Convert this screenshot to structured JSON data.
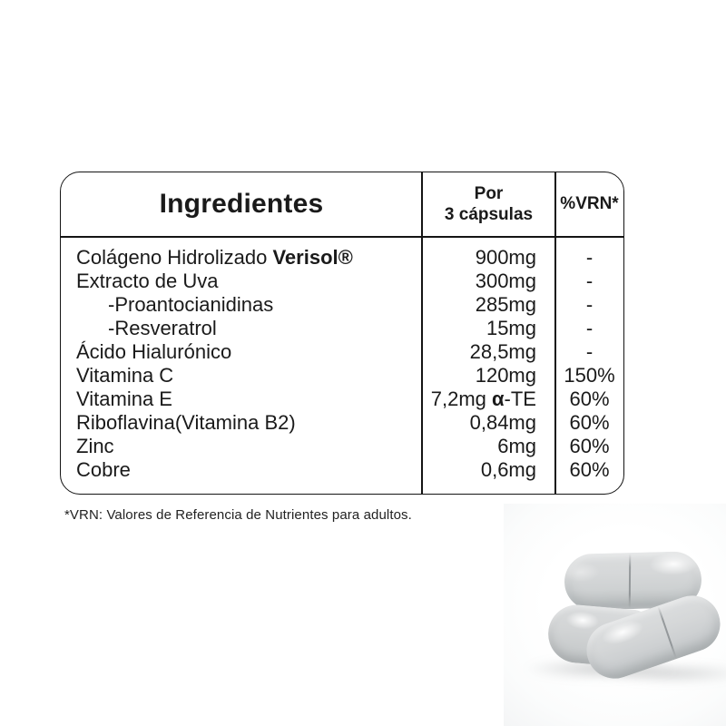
{
  "table": {
    "header": {
      "ingredients": "Ingredientes",
      "per_line1": "Por",
      "per_line2": "3 cápsulas",
      "vrn": "%VRN*"
    },
    "rows": [
      {
        "name": "Colágeno Hidrolizado ",
        "name_bold": "Verisol®",
        "amount": "900mg",
        "vrn": "-"
      },
      {
        "name": "Extracto de Uva",
        "amount": "300mg",
        "vrn": "-"
      },
      {
        "name": "-Proantocianidinas",
        "amount": "285mg",
        "vrn": "-"
      },
      {
        "name": "-Resveratrol",
        "amount": "15mg",
        "vrn": "-"
      },
      {
        "name": "Ácido Hialurónico",
        "amount": "28,5mg",
        "vrn": "-"
      },
      {
        "name": "Vitamina C",
        "amount": "120mg",
        "vrn": "150%"
      },
      {
        "name": "Vitamina E",
        "amount": "7,2mg ",
        "amount_bold": "α",
        "amount_post": "-TE",
        "vrn": "60%"
      },
      {
        "name": "Riboflavina(Vitamina B2)",
        "amount": "0,84mg",
        "vrn": "60%"
      },
      {
        "name": "Zinc",
        "amount": "6mg",
        "vrn": "60%"
      },
      {
        "name": "Cobre",
        "amount": "0,6mg",
        "vrn": "60%"
      }
    ]
  },
  "footnote": "*VRN: Valores de Referencia de Nutrientes para adultos.",
  "colors": {
    "text": "#1a1a1a",
    "table_border": "#141414",
    "capsule_body": "#d3d5d6",
    "capsule_edge": "#bdc1c2",
    "capsule_highlight": "#f5f6f6",
    "background": "#ffffff"
  }
}
